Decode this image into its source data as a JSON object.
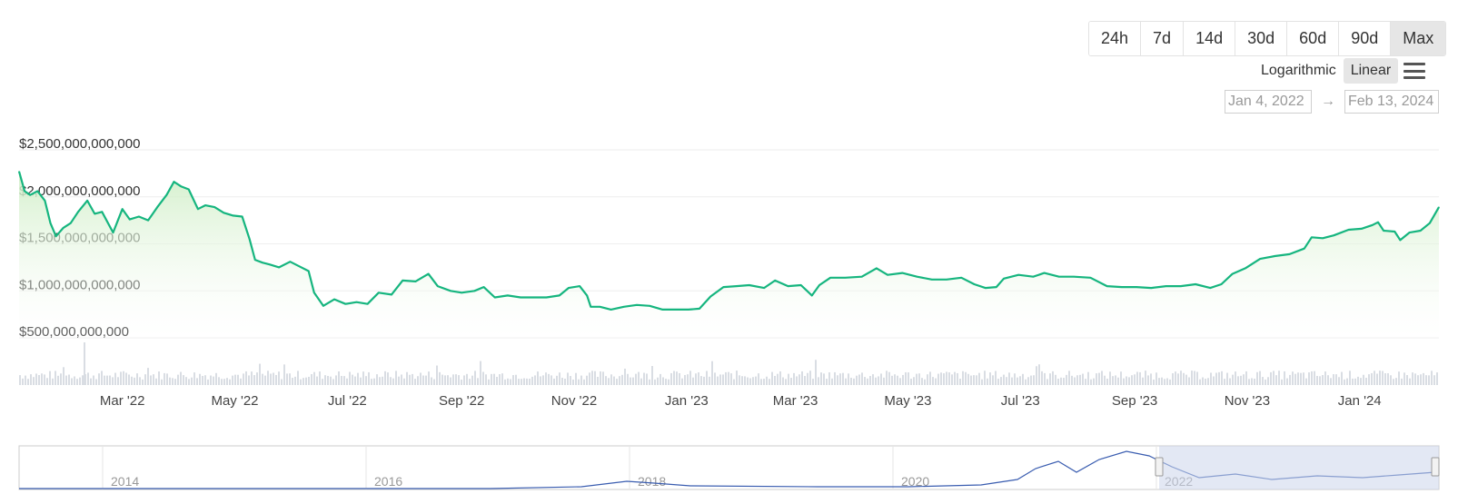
{
  "range_buttons": [
    {
      "label": "24h",
      "active": false
    },
    {
      "label": "7d",
      "active": false
    },
    {
      "label": "14d",
      "active": false
    },
    {
      "label": "30d",
      "active": false
    },
    {
      "label": "60d",
      "active": false
    },
    {
      "label": "90d",
      "active": false
    },
    {
      "label": "Max",
      "active": true
    }
  ],
  "scale": {
    "log_label": "Logarithmic",
    "linear_label": "Linear",
    "selected": "Linear"
  },
  "date_range": {
    "from": "Jan 4, 2022",
    "arrow": "→",
    "to": "Feb 13, 2024"
  },
  "colors": {
    "line": "#16b57f",
    "fill_top": "#cfeec6",
    "volume": "#d9dde3",
    "navigator_line": "#3a5db0",
    "navigator_mask": "#ccd6eb",
    "grid": "#eeeeee"
  },
  "chart_data": {
    "type": "area",
    "ylim": [
      0,
      2500000000000
    ],
    "y_ticks": [
      {
        "value": 2500000000000,
        "label": "$2,500,000,000,000"
      },
      {
        "value": 2000000000000,
        "label": "$2,000,000,000,000"
      },
      {
        "value": 1500000000000,
        "label": "$1,500,000,000,000"
      },
      {
        "value": 1000000000000,
        "label": "$1,000,000,000,000"
      },
      {
        "value": 500000000000,
        "label": "$500,000,000,000"
      }
    ],
    "x_range": [
      "2022-01-04",
      "2024-02-13"
    ],
    "x_ticks": [
      {
        "date": "2022-03-01",
        "label": "Mar '22"
      },
      {
        "date": "2022-05-01",
        "label": "May '22"
      },
      {
        "date": "2022-07-01",
        "label": "Jul '22"
      },
      {
        "date": "2022-09-01",
        "label": "Sep '22"
      },
      {
        "date": "2022-11-01",
        "label": "Nov '22"
      },
      {
        "date": "2023-01-01",
        "label": "Jan '23"
      },
      {
        "date": "2023-03-01",
        "label": "Mar '23"
      },
      {
        "date": "2023-05-01",
        "label": "May '23"
      },
      {
        "date": "2023-07-01",
        "label": "Jul '23"
      },
      {
        "date": "2023-09-01",
        "label": "Sep '23"
      },
      {
        "date": "2023-11-01",
        "label": "Nov '23"
      },
      {
        "date": "2024-01-01",
        "label": "Jan '24"
      }
    ],
    "series": [
      {
        "values": [
          [
            "2022-01-04",
            2.27
          ],
          [
            "2022-01-07",
            2.06
          ],
          [
            "2022-01-10",
            2.02
          ],
          [
            "2022-01-14",
            2.06
          ],
          [
            "2022-01-18",
            1.96
          ],
          [
            "2022-01-21",
            1.72
          ],
          [
            "2022-01-24",
            1.58
          ],
          [
            "2022-01-28",
            1.67
          ],
          [
            "2022-02-01",
            1.72
          ],
          [
            "2022-02-05",
            1.84
          ],
          [
            "2022-02-10",
            1.96
          ],
          [
            "2022-02-14",
            1.82
          ],
          [
            "2022-02-18",
            1.84
          ],
          [
            "2022-02-24",
            1.62
          ],
          [
            "2022-03-01",
            1.87
          ],
          [
            "2022-03-05",
            1.76
          ],
          [
            "2022-03-10",
            1.79
          ],
          [
            "2022-03-15",
            1.75
          ],
          [
            "2022-03-20",
            1.89
          ],
          [
            "2022-03-25",
            2.02
          ],
          [
            "2022-03-29",
            2.16
          ],
          [
            "2022-04-02",
            2.11
          ],
          [
            "2022-04-06",
            2.08
          ],
          [
            "2022-04-11",
            1.87
          ],
          [
            "2022-04-15",
            1.91
          ],
          [
            "2022-04-20",
            1.89
          ],
          [
            "2022-04-25",
            1.83
          ],
          [
            "2022-04-30",
            1.8
          ],
          [
            "2022-05-05",
            1.79
          ],
          [
            "2022-05-09",
            1.55
          ],
          [
            "2022-05-12",
            1.33
          ],
          [
            "2022-05-16",
            1.3
          ],
          [
            "2022-05-20",
            1.28
          ],
          [
            "2022-05-25",
            1.25
          ],
          [
            "2022-05-31",
            1.31
          ],
          [
            "2022-06-05",
            1.26
          ],
          [
            "2022-06-10",
            1.21
          ],
          [
            "2022-06-13",
            0.98
          ],
          [
            "2022-06-18",
            0.84
          ],
          [
            "2022-06-24",
            0.91
          ],
          [
            "2022-06-30",
            0.86
          ],
          [
            "2022-07-06",
            0.88
          ],
          [
            "2022-07-12",
            0.86
          ],
          [
            "2022-07-18",
            0.98
          ],
          [
            "2022-07-25",
            0.96
          ],
          [
            "2022-07-31",
            1.11
          ],
          [
            "2022-08-07",
            1.1
          ],
          [
            "2022-08-14",
            1.18
          ],
          [
            "2022-08-19",
            1.05
          ],
          [
            "2022-08-26",
            1.0
          ],
          [
            "2022-09-01",
            0.98
          ],
          [
            "2022-09-08",
            1.0
          ],
          [
            "2022-09-13",
            1.04
          ],
          [
            "2022-09-19",
            0.93
          ],
          [
            "2022-09-26",
            0.95
          ],
          [
            "2022-10-03",
            0.93
          ],
          [
            "2022-10-10",
            0.93
          ],
          [
            "2022-10-17",
            0.93
          ],
          [
            "2022-10-24",
            0.95
          ],
          [
            "2022-10-29",
            1.03
          ],
          [
            "2022-11-04",
            1.05
          ],
          [
            "2022-11-08",
            0.95
          ],
          [
            "2022-11-10",
            0.83
          ],
          [
            "2022-11-15",
            0.83
          ],
          [
            "2022-11-21",
            0.8
          ],
          [
            "2022-11-28",
            0.83
          ],
          [
            "2022-12-05",
            0.85
          ],
          [
            "2022-12-12",
            0.84
          ],
          [
            "2022-12-19",
            0.8
          ],
          [
            "2022-12-26",
            0.8
          ],
          [
            "2023-01-02",
            0.8
          ],
          [
            "2023-01-08",
            0.81
          ],
          [
            "2023-01-14",
            0.94
          ],
          [
            "2023-01-21",
            1.04
          ],
          [
            "2023-01-28",
            1.05
          ],
          [
            "2023-02-04",
            1.06
          ],
          [
            "2023-02-12",
            1.03
          ],
          [
            "2023-02-18",
            1.11
          ],
          [
            "2023-02-25",
            1.05
          ],
          [
            "2023-03-04",
            1.06
          ],
          [
            "2023-03-10",
            0.95
          ],
          [
            "2023-03-14",
            1.06
          ],
          [
            "2023-03-20",
            1.14
          ],
          [
            "2023-03-28",
            1.14
          ],
          [
            "2023-04-06",
            1.15
          ],
          [
            "2023-04-14",
            1.24
          ],
          [
            "2023-04-20",
            1.17
          ],
          [
            "2023-04-28",
            1.19
          ],
          [
            "2023-05-06",
            1.15
          ],
          [
            "2023-05-14",
            1.12
          ],
          [
            "2023-05-22",
            1.12
          ],
          [
            "2023-05-30",
            1.14
          ],
          [
            "2023-06-06",
            1.07
          ],
          [
            "2023-06-12",
            1.03
          ],
          [
            "2023-06-18",
            1.04
          ],
          [
            "2023-06-22",
            1.13
          ],
          [
            "2023-06-30",
            1.17
          ],
          [
            "2023-07-08",
            1.15
          ],
          [
            "2023-07-14",
            1.19
          ],
          [
            "2023-07-22",
            1.15
          ],
          [
            "2023-07-30",
            1.15
          ],
          [
            "2023-08-08",
            1.14
          ],
          [
            "2023-08-17",
            1.05
          ],
          [
            "2023-08-25",
            1.04
          ],
          [
            "2023-09-02",
            1.04
          ],
          [
            "2023-09-10",
            1.03
          ],
          [
            "2023-09-18",
            1.05
          ],
          [
            "2023-09-26",
            1.05
          ],
          [
            "2023-10-04",
            1.07
          ],
          [
            "2023-10-12",
            1.03
          ],
          [
            "2023-10-18",
            1.07
          ],
          [
            "2023-10-24",
            1.18
          ],
          [
            "2023-10-31",
            1.24
          ],
          [
            "2023-11-08",
            1.34
          ],
          [
            "2023-11-16",
            1.37
          ],
          [
            "2023-11-24",
            1.39
          ],
          [
            "2023-12-02",
            1.45
          ],
          [
            "2023-12-06",
            1.57
          ],
          [
            "2023-12-12",
            1.56
          ],
          [
            "2023-12-18",
            1.59
          ],
          [
            "2023-12-26",
            1.65
          ],
          [
            "2024-01-02",
            1.66
          ],
          [
            "2024-01-08",
            1.7
          ],
          [
            "2024-01-11",
            1.73
          ],
          [
            "2024-01-14",
            1.64
          ],
          [
            "2024-01-20",
            1.63
          ],
          [
            "2024-01-23",
            1.54
          ],
          [
            "2024-01-28",
            1.62
          ],
          [
            "2024-02-03",
            1.64
          ],
          [
            "2024-02-08",
            1.72
          ],
          [
            "2024-02-13",
            1.89
          ]
        ],
        "value_multiplier": 1000000000000
      }
    ],
    "navigator": {
      "labels": [
        "2014",
        "2016",
        "2018",
        "2020",
        "2022"
      ],
      "selected_range": [
        "2022-01-04",
        "2024-02-13"
      ]
    },
    "volume_bars": true,
    "grid": true,
    "legend": "none"
  }
}
